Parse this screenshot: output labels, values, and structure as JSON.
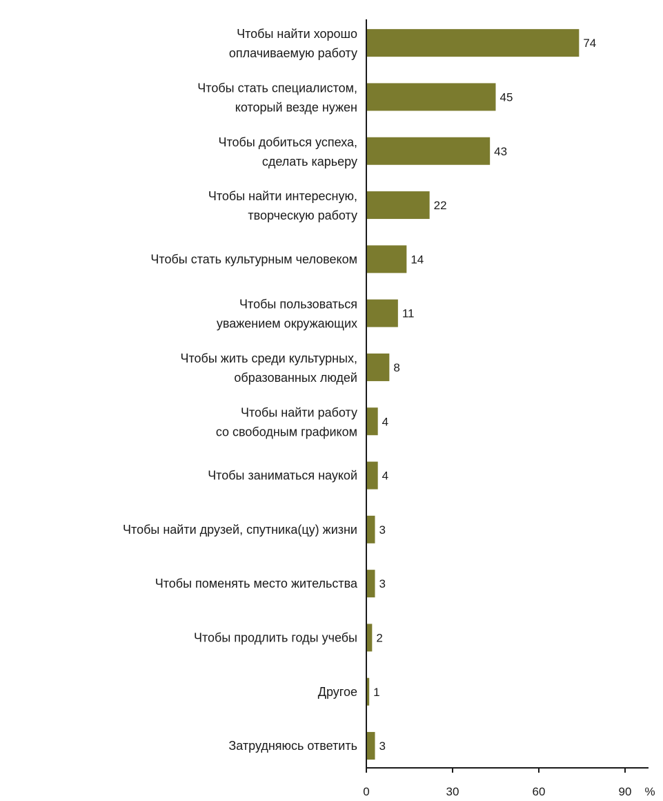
{
  "chart_data": {
    "type": "bar",
    "orientation": "horizontal",
    "bar_color": "#7b7b2e",
    "categories": [
      [
        "Чтобы найти хорошо",
        "оплачиваемую работу"
      ],
      [
        "Чтобы стать специалистом,",
        "который везде нужен"
      ],
      [
        "Чтобы добиться успеха,",
        "сделать карьеру"
      ],
      [
        "Чтобы найти интересную,",
        "творческую работу"
      ],
      [
        "Чтобы стать культурным человеком"
      ],
      [
        "Чтобы пользоваться",
        "уважением окружающих"
      ],
      [
        "Чтобы жить среди культурных,",
        "образованных людей"
      ],
      [
        "Чтобы найти работу",
        "со свободным графиком"
      ],
      [
        "Чтобы заниматься наукой"
      ],
      [
        "Чтобы найти друзей, спутника(цу) жизни"
      ],
      [
        "Чтобы поменять место жительства"
      ],
      [
        "Чтобы продлить годы учебы"
      ],
      [
        "Другое"
      ],
      [
        "Затрудняюсь ответить"
      ]
    ],
    "values": [
      74,
      45,
      43,
      22,
      14,
      11,
      8,
      4,
      4,
      3,
      3,
      2,
      1,
      3
    ],
    "xlim": [
      0,
      90
    ],
    "xticks": [
      0,
      30,
      60,
      90
    ],
    "xtick_labels": [
      "0",
      "30",
      "60",
      "90"
    ],
    "unit": "%",
    "grid": false,
    "legend": "none"
  }
}
